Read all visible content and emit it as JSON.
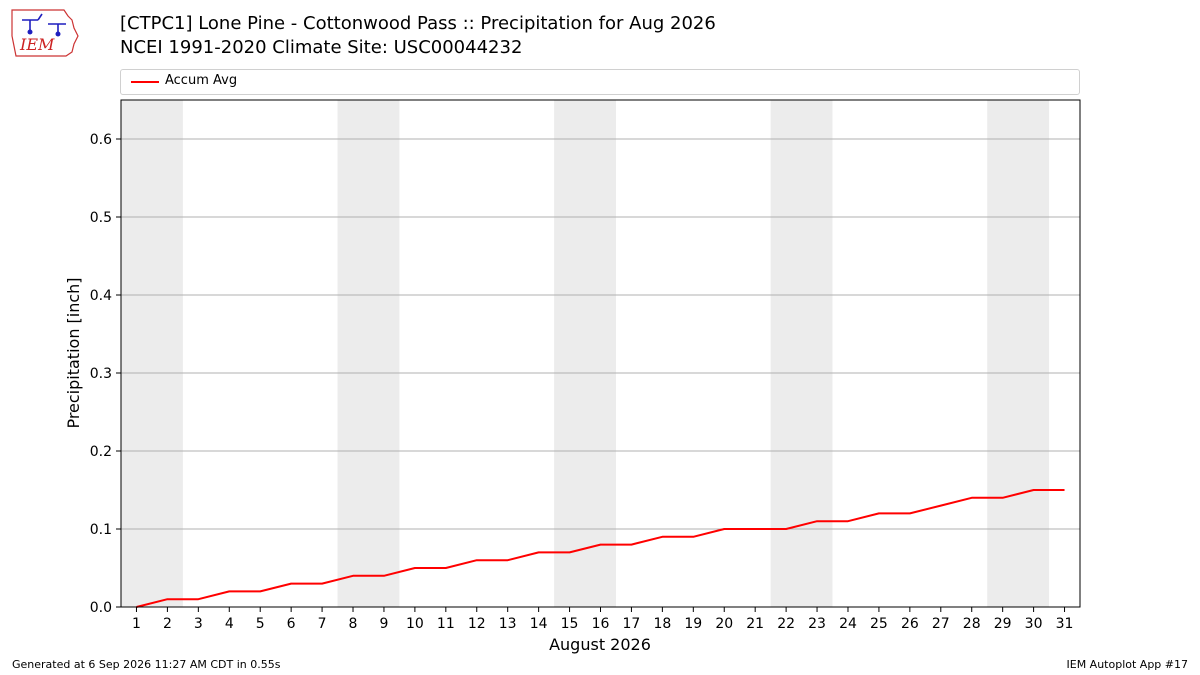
{
  "header": {
    "title_line1": "[CTPC1] Lone Pine - Cottonwood Pass :: Precipitation for Aug 2026",
    "title_line2": "NCEI 1991-2020 Climate Site: USC00044232",
    "logo_text": "IEM"
  },
  "legend": {
    "label": "Accum Avg"
  },
  "footer": {
    "left": "Generated at 6 Sep 2026 11:27 AM CDT in 0.55s",
    "right": "IEM Autoplot App #17"
  },
  "colors": {
    "series": "#ff0000",
    "weekend_band": "#ececec",
    "grid": "#b0b0b0",
    "logo": "#1f1fbf"
  },
  "chart_data": {
    "type": "line",
    "title": "[CTPC1] Lone Pine - Cottonwood Pass :: Precipitation for Aug 2026",
    "subtitle": "NCEI 1991-2020 Climate Site: USC00044232",
    "xlabel": "August 2026",
    "ylabel": "Precipitation [inch]",
    "xlim": [
      0.5,
      31.5
    ],
    "ylim": [
      0,
      0.65
    ],
    "x": [
      1,
      2,
      3,
      4,
      5,
      6,
      7,
      8,
      9,
      10,
      11,
      12,
      13,
      14,
      15,
      16,
      17,
      18,
      19,
      20,
      21,
      22,
      23,
      24,
      25,
      26,
      27,
      28,
      29,
      30,
      31
    ],
    "x_tick_labels": [
      "1",
      "2",
      "3",
      "4",
      "5",
      "6",
      "7",
      "8",
      "9",
      "10",
      "11",
      "12",
      "13",
      "14",
      "15",
      "16",
      "17",
      "18",
      "19",
      "20",
      "21",
      "22",
      "23",
      "24",
      "25",
      "26",
      "27",
      "28",
      "29",
      "30",
      "31"
    ],
    "y_ticks": [
      0.0,
      0.1,
      0.2,
      0.3,
      0.4,
      0.5,
      0.6
    ],
    "y_tick_labels": [
      "0.0",
      "0.1",
      "0.2",
      "0.3",
      "0.4",
      "0.5",
      "0.6"
    ],
    "series": [
      {
        "name": "Accum Avg",
        "values": [
          0.0,
          0.01,
          0.01,
          0.02,
          0.02,
          0.03,
          0.03,
          0.04,
          0.04,
          0.05,
          0.05,
          0.06,
          0.06,
          0.07,
          0.07,
          0.08,
          0.08,
          0.09,
          0.09,
          0.1,
          0.1,
          0.1,
          0.11,
          0.11,
          0.12,
          0.12,
          0.13,
          0.14,
          0.14,
          0.15,
          0.15
        ]
      }
    ],
    "weekend_bands": [
      [
        0.5,
        2.5
      ],
      [
        7.5,
        9.5
      ],
      [
        14.5,
        16.5
      ],
      [
        21.5,
        23.5
      ],
      [
        28.5,
        30.5
      ]
    ],
    "grid": "horizontal",
    "legend_position": "top"
  }
}
